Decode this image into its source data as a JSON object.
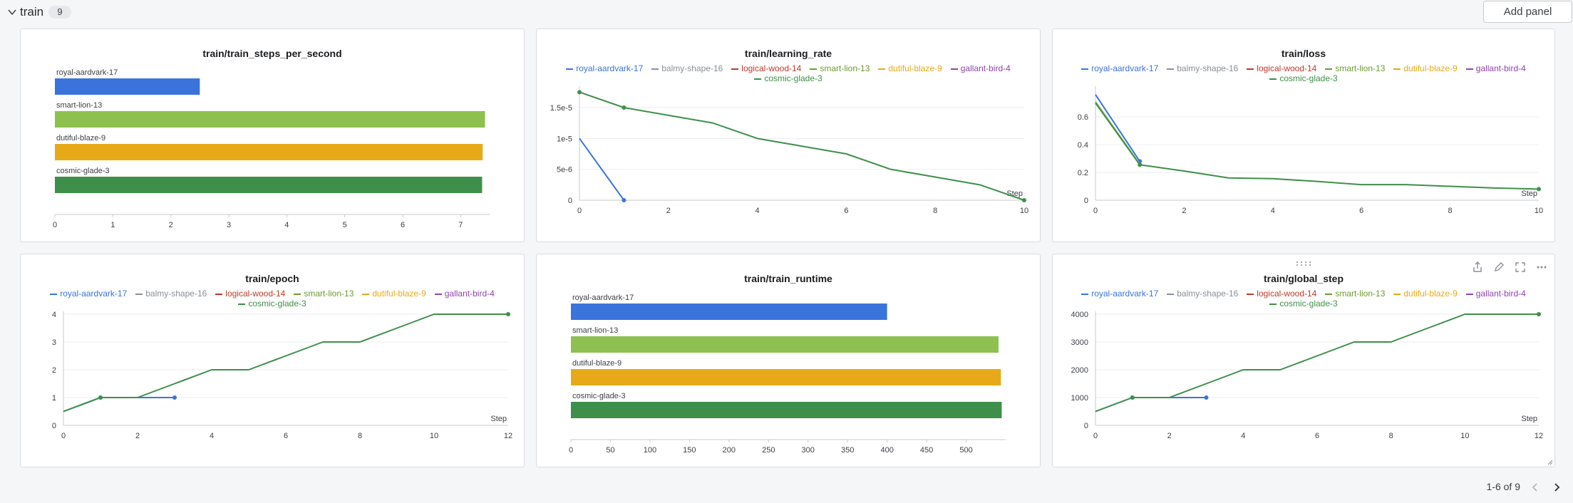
{
  "section": {
    "title": "train",
    "count": "9",
    "add_panel_label": "Add panel"
  },
  "pager": {
    "label": "1-6 of 9"
  },
  "colors": {
    "royal-aardvark-17": "#3b73dc",
    "balmy-shape-16": "#8a8f97",
    "logical-wood-14": "#c0392b",
    "smart-lion-13": "#8ec04f",
    "dutiful-blaze-9": "#e8a918",
    "gallant-bird-4": "#8e44ad",
    "cosmic-glade-3": "#3e8f4a"
  },
  "legend_runs": [
    {
      "name": "royal-aardvark-17",
      "color": "#3b73dc"
    },
    {
      "name": "balmy-shape-16",
      "color": "#8a8f97"
    },
    {
      "name": "logical-wood-14",
      "color": "#c0392b"
    },
    {
      "name": "smart-lion-13",
      "color": "#6f9a2e"
    },
    {
      "name": "dutiful-blaze-9",
      "color": "#e8a918"
    },
    {
      "name": "gallant-bird-4",
      "color": "#8e44ad"
    },
    {
      "name": "cosmic-glade-3",
      "color": "#3e8f4a"
    }
  ],
  "panel_icons": [
    "share-icon",
    "edit-icon",
    "fullscreen-icon",
    "more-icon"
  ],
  "chart_data": [
    {
      "type": "bar",
      "title": "train/train_steps_per_second",
      "categories": [
        "royal-aardvark-17",
        "smart-lion-13",
        "dutiful-blaze-9",
        "cosmic-glade-3"
      ],
      "values": [
        2.5,
        7.42,
        7.38,
        7.37
      ],
      "colors": [
        "#3b73dc",
        "#8ec04f",
        "#e8a918",
        "#3e8f4a"
      ],
      "xlim": [
        0,
        7.5
      ],
      "ticks": [
        "0",
        "1",
        "2",
        "3",
        "4",
        "5",
        "6",
        "7"
      ],
      "tick_values": [
        0,
        1,
        2,
        3,
        4,
        5,
        6,
        7
      ]
    },
    {
      "type": "line",
      "title": "train/learning_rate",
      "xlabel": "Step",
      "xlim": [
        0,
        10
      ],
      "ylim": [
        0,
        1.8e-05
      ],
      "xticks": [
        "0",
        "2",
        "4",
        "6",
        "8",
        "10"
      ],
      "xtick_values": [
        0,
        2,
        4,
        6,
        8,
        10
      ],
      "yticks": [
        "0",
        "5e-6",
        "1e-5",
        "1.5e-5"
      ],
      "ytick_values": [
        0,
        5e-06,
        1e-05,
        1.5e-05
      ],
      "series": [
        {
          "name": "royal-aardvark-17",
          "color": "#3b73dc",
          "x": [
            0,
            1
          ],
          "y": [
            1e-05,
            0
          ],
          "end_dot": true
        },
        {
          "name": "cosmic-glade-3",
          "color": "#3e8f4a",
          "x": [
            0,
            1,
            2,
            3,
            4,
            5,
            6,
            7,
            8,
            9,
            10
          ],
          "y": [
            1.75e-05,
            1.5e-05,
            1.375e-05,
            1.25e-05,
            1e-05,
            8.75e-06,
            7.5e-06,
            5e-06,
            3.75e-06,
            2.5e-06,
            0
          ],
          "start_dot": true,
          "end_dot": true,
          "dot_at": 1
        }
      ]
    },
    {
      "type": "line",
      "title": "train/loss",
      "xlabel": "Step",
      "xlim": [
        0,
        10
      ],
      "ylim": [
        0,
        0.8
      ],
      "xticks": [
        "0",
        "2",
        "4",
        "6",
        "8",
        "10"
      ],
      "xtick_values": [
        0,
        2,
        4,
        6,
        8,
        10
      ],
      "yticks": [
        "0",
        "0.2",
        "0.4",
        "0.6"
      ],
      "ytick_values": [
        0,
        0.2,
        0.4,
        0.6
      ],
      "series": [
        {
          "name": "royal-aardvark-17",
          "color": "#3b73dc",
          "x": [
            0,
            1
          ],
          "y": [
            0.76,
            0.28
          ],
          "end_dot": true
        },
        {
          "name": "smart-lion-13",
          "color": "#8ec04f",
          "x": [
            0,
            1
          ],
          "y": [
            0.71,
            0.26
          ]
        },
        {
          "name": "cosmic-glade-3",
          "color": "#3e8f4a",
          "x": [
            0,
            1,
            2,
            3,
            4,
            5,
            6,
            7,
            8,
            9,
            10
          ],
          "y": [
            0.7,
            0.255,
            0.21,
            0.16,
            0.155,
            0.135,
            0.112,
            0.112,
            0.1,
            0.088,
            0.08
          ],
          "end_dot": true,
          "dot_at": 1
        }
      ]
    },
    {
      "type": "line",
      "title": "train/epoch",
      "xlabel": "Step",
      "xlim": [
        0,
        12
      ],
      "ylim": [
        0,
        4
      ],
      "xticks": [
        "0",
        "2",
        "4",
        "6",
        "8",
        "10",
        "12"
      ],
      "xtick_values": [
        0,
        2,
        4,
        6,
        8,
        10,
        12
      ],
      "yticks": [
        "0",
        "1",
        "2",
        "3",
        "4"
      ],
      "ytick_values": [
        0,
        1,
        2,
        3,
        4
      ],
      "series": [
        {
          "name": "royal-aardvark-17",
          "color": "#3b73dc",
          "x": [
            0,
            1,
            2,
            3
          ],
          "y": [
            0.5,
            1,
            1,
            1
          ],
          "end_dot": true,
          "dot_at": 1
        },
        {
          "name": "cosmic-glade-3",
          "color": "#3e8f4a",
          "x": [
            0,
            1,
            2,
            3,
            4,
            5,
            6,
            7,
            8,
            9,
            10,
            11,
            12
          ],
          "y": [
            0.5,
            1,
            1,
            1.5,
            2,
            2,
            2.5,
            3,
            3,
            3.5,
            4,
            4,
            4
          ],
          "end_dot": true,
          "dot_at": 1
        }
      ]
    },
    {
      "type": "bar",
      "title": "train/train_runtime",
      "categories": [
        "royal-aardvark-17",
        "smart-lion-13",
        "dutiful-blaze-9",
        "cosmic-glade-3"
      ],
      "values": [
        400,
        541,
        544,
        545
      ],
      "colors": [
        "#3b73dc",
        "#8ec04f",
        "#e8a918",
        "#3e8f4a"
      ],
      "xlim": [
        0,
        550
      ],
      "ticks": [
        "0",
        "50",
        "100",
        "150",
        "200",
        "250",
        "300",
        "350",
        "400",
        "450",
        "500"
      ],
      "tick_values": [
        0,
        50,
        100,
        150,
        200,
        250,
        300,
        350,
        400,
        450,
        500
      ]
    },
    {
      "type": "line",
      "title": "train/global_step",
      "xlabel": "Step",
      "xlim": [
        0,
        12
      ],
      "ylim": [
        0,
        4000
      ],
      "xticks": [
        "0",
        "2",
        "4",
        "6",
        "8",
        "10",
        "12"
      ],
      "xtick_values": [
        0,
        2,
        4,
        6,
        8,
        10,
        12
      ],
      "yticks": [
        "0",
        "1000",
        "2000",
        "3000",
        "4000"
      ],
      "ytick_values": [
        0,
        1000,
        2000,
        3000,
        4000
      ],
      "series": [
        {
          "name": "royal-aardvark-17",
          "color": "#3b73dc",
          "x": [
            0,
            1,
            2,
            3
          ],
          "y": [
            500,
            1000,
            1000,
            1000
          ],
          "end_dot": true,
          "dot_at": 1
        },
        {
          "name": "cosmic-glade-3",
          "color": "#3e8f4a",
          "x": [
            0,
            1,
            2,
            3,
            4,
            5,
            6,
            7,
            8,
            9,
            10,
            11,
            12
          ],
          "y": [
            500,
            1000,
            1000,
            1500,
            2000,
            2000,
            2500,
            3000,
            3000,
            3500,
            4000,
            4000,
            4000
          ],
          "end_dot": true,
          "dot_at": 1
        }
      ]
    }
  ]
}
